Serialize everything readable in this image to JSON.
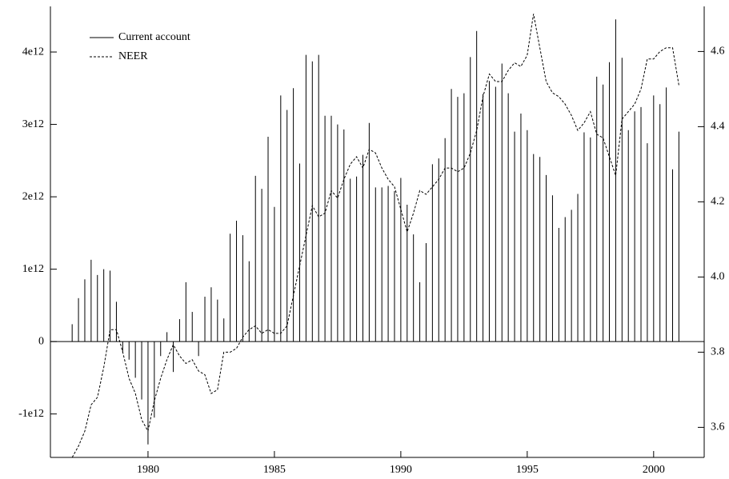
{
  "chart_data": {
    "type": "bar-line",
    "x": [
      1977,
      1977.25,
      1977.5,
      1977.75,
      1978,
      1978.25,
      1978.5,
      1978.75,
      1979,
      1979.25,
      1979.5,
      1979.75,
      1980,
      1980.25,
      1980.5,
      1980.75,
      1981,
      1981.25,
      1981.5,
      1981.75,
      1982,
      1982.25,
      1982.5,
      1982.75,
      1983,
      1983.25,
      1983.5,
      1983.75,
      1984,
      1984.25,
      1984.5,
      1984.75,
      1985,
      1985.25,
      1985.5,
      1985.75,
      1986,
      1986.25,
      1986.5,
      1986.75,
      1987,
      1987.25,
      1987.5,
      1987.75,
      1988,
      1988.25,
      1988.5,
      1988.75,
      1989,
      1989.25,
      1989.5,
      1989.75,
      1990,
      1990.25,
      1990.5,
      1990.75,
      1991,
      1991.25,
      1991.5,
      1991.75,
      1992,
      1992.25,
      1992.5,
      1992.75,
      1993,
      1993.25,
      1993.5,
      1993.75,
      1994,
      1994.25,
      1994.5,
      1994.75,
      1995,
      1995.25,
      1995.5,
      1995.75,
      1996,
      1996.25,
      1996.5,
      1996.75,
      1997,
      1997.25,
      1997.5,
      1997.75,
      1998,
      1998.25,
      1998.5,
      1998.75,
      1999,
      1999.25,
      1999.5,
      1999.75,
      2000,
      2000.25,
      2000.5,
      2000.75,
      2001
    ],
    "series": [
      {
        "name": "Current account",
        "color": "#000000",
        "style": "solid",
        "kind": "bar",
        "values": [
          240000000000.0,
          600000000000.0,
          860000000000.0,
          1130000000000.0,
          920000000000.0,
          1000000000000.0,
          980000000000.0,
          550000000000.0,
          -150000000000.0,
          -250000000000.0,
          -500000000000.0,
          -800000000000.0,
          -1420000000000.0,
          -1050000000000.0,
          -200000000000.0,
          130000000000.0,
          -420000000000.0,
          310000000000.0,
          820000000000.0,
          410000000000.0,
          -200000000000.0,
          620000000000.0,
          750000000000.0,
          580000000000.0,
          320000000000.0,
          1490000000000.0,
          1670000000000.0,
          1470000000000.0,
          1110000000000.0,
          2290000000000.0,
          2110000000000.0,
          2830000000000.0,
          1860000000000.0,
          3400000000000.0,
          3200000000000.0,
          3500000000000.0,
          2460000000000.0,
          3960000000000.0,
          3870000000000.0,
          3960000000000.0,
          3120000000000.0,
          3120000000000.0,
          3000000000000.0,
          2930000000000.0,
          2250000000000.0,
          2280000000000.0,
          2580000000000.0,
          3020000000000.0,
          2130000000000.0,
          2130000000000.0,
          2150000000000.0,
          2080000000000.0,
          2260000000000.0,
          1890000000000.0,
          1480000000000.0,
          820000000000.0,
          1360000000000.0,
          2450000000000.0,
          2530000000000.0,
          2810000000000.0,
          3490000000000.0,
          3380000000000.0,
          3430000000000.0,
          3930000000000.0,
          4290000000000.0,
          3420000000000.0,
          3600000000000.0,
          3520000000000.0,
          3840000000000.0,
          3430000000000.0,
          2900000000000.0,
          3150000000000.0,
          2920000000000.0,
          2590000000000.0,
          2550000000000.0,
          2300000000000.0,
          2020000000000.0,
          1570000000000.0,
          1720000000000.0,
          1820000000000.0,
          2040000000000.0,
          2890000000000.0,
          2820000000000.0,
          3660000000000.0,
          3550000000000.0,
          3860000000000.0,
          4450000000000.0,
          3920000000000.0,
          2920000000000.0,
          3180000000000.0,
          3240000000000.0,
          2740000000000.0,
          3400000000000.0,
          3280000000000.0,
          3510000000000.0,
          2380000000000.0,
          2900000000000.0
        ]
      },
      {
        "name": "NEER",
        "color": "#000000",
        "style": "dashed",
        "kind": "line",
        "axis": "y2",
        "values": [
          3.52,
          3.55,
          3.59,
          3.66,
          3.68,
          3.76,
          3.86,
          3.86,
          3.8,
          3.73,
          3.69,
          3.62,
          3.59,
          3.67,
          3.73,
          3.78,
          3.82,
          3.79,
          3.77,
          3.78,
          3.75,
          3.74,
          3.69,
          3.7,
          3.8,
          3.8,
          3.81,
          3.84,
          3.86,
          3.87,
          3.85,
          3.86,
          3.85,
          3.85,
          3.87,
          3.95,
          4.03,
          4.11,
          4.19,
          4.16,
          4.17,
          4.23,
          4.21,
          4.26,
          4.3,
          4.32,
          4.29,
          4.34,
          4.33,
          4.29,
          4.26,
          4.24,
          4.18,
          4.12,
          4.17,
          4.23,
          4.22,
          4.24,
          4.26,
          4.29,
          4.29,
          4.28,
          4.29,
          4.33,
          4.39,
          4.48,
          4.54,
          4.52,
          4.52,
          4.55,
          4.57,
          4.56,
          4.59,
          4.7,
          4.61,
          4.52,
          4.49,
          4.48,
          4.46,
          4.43,
          4.39,
          4.41,
          4.44,
          4.38,
          4.37,
          4.32,
          4.27,
          4.42,
          4.44,
          4.46,
          4.5,
          4.58,
          4.58,
          4.6,
          4.61,
          4.61,
          4.51
        ]
      }
    ],
    "xlim": [
      1976.14,
      2002
    ],
    "xticks": [
      1980,
      1985,
      1990,
      1995,
      2000
    ],
    "ylim": [
      -1600000000000.0,
      4630000000000.0
    ],
    "yticks": [
      {
        "value": -1000000000000.0,
        "label": "-1e12"
      },
      0,
      {
        "value": 1000000000000.0,
        "label": "1e12"
      },
      {
        "value": 2000000000000.0,
        "label": "2e12"
      },
      {
        "value": 3000000000000.0,
        "label": "3e12"
      },
      {
        "value": 4000000000000.0,
        "label": "4e12"
      }
    ],
    "y2lim": [
      3.52,
      4.72
    ],
    "y2ticks": [
      {
        "value": 3.6,
        "label": "3.6"
      },
      {
        "value": 3.8,
        "label": "3.8"
      },
      {
        "value": 4.0,
        "label": "4.0"
      },
      {
        "value": 4.2,
        "label": "4.2"
      },
      {
        "value": 4.4,
        "label": "4.4"
      },
      {
        "value": 4.6,
        "label": "4.6"
      }
    ],
    "legend": "upper-left"
  }
}
